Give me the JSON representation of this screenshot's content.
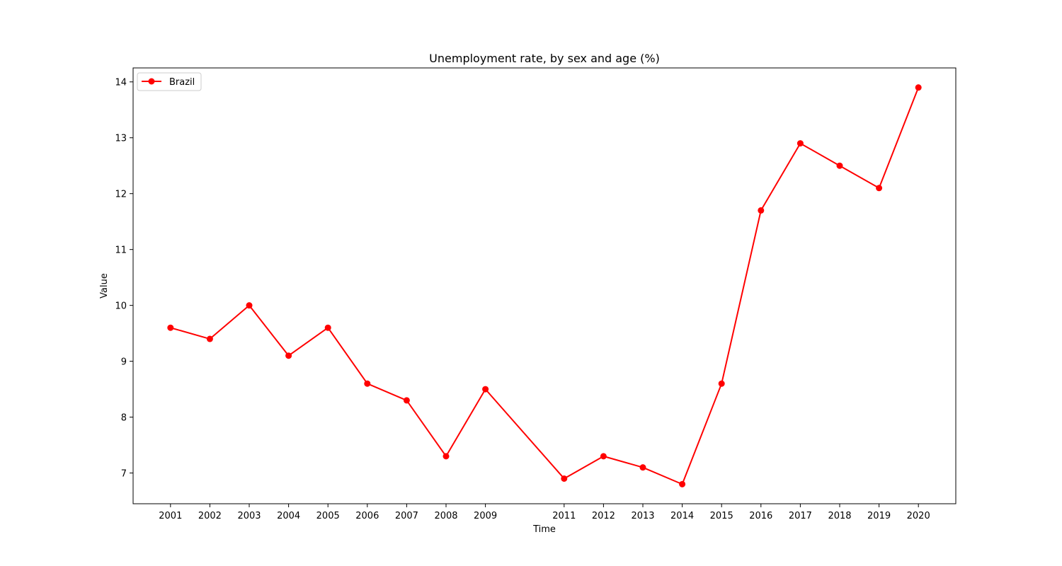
{
  "chart_data": {
    "type": "line",
    "title": "Unemployment rate, by sex and age (%)",
    "xlabel": "Time",
    "ylabel": "Value",
    "x": [
      2001,
      2002,
      2003,
      2004,
      2005,
      2006,
      2007,
      2008,
      2009,
      2011,
      2012,
      2013,
      2014,
      2015,
      2016,
      2017,
      2018,
      2019,
      2020
    ],
    "x_tick_labels": [
      "2001",
      "2002",
      "2003",
      "2004",
      "2005",
      "2006",
      "2007",
      "2008",
      "2009",
      "2011",
      "2012",
      "2013",
      "2014",
      "2015",
      "2016",
      "2017",
      "2018",
      "2019",
      "2020"
    ],
    "y_ticks": [
      7,
      8,
      9,
      10,
      11,
      12,
      13,
      14
    ],
    "y_tick_labels": [
      "7",
      "8",
      "9",
      "10",
      "11",
      "12",
      "13",
      "14"
    ],
    "xlim": [
      2000.05,
      2020.95
    ],
    "ylim": [
      6.45,
      14.25
    ],
    "grid": false,
    "legend_position": "top-left",
    "series": [
      {
        "name": "Brazil",
        "color": "#ff0000",
        "marker": "circle",
        "values": [
          9.6,
          9.4,
          10.0,
          9.1,
          9.6,
          8.6,
          8.3,
          7.3,
          8.5,
          6.9,
          7.3,
          7.1,
          6.8,
          8.6,
          11.7,
          12.9,
          12.5,
          12.1,
          13.9
        ]
      }
    ]
  }
}
